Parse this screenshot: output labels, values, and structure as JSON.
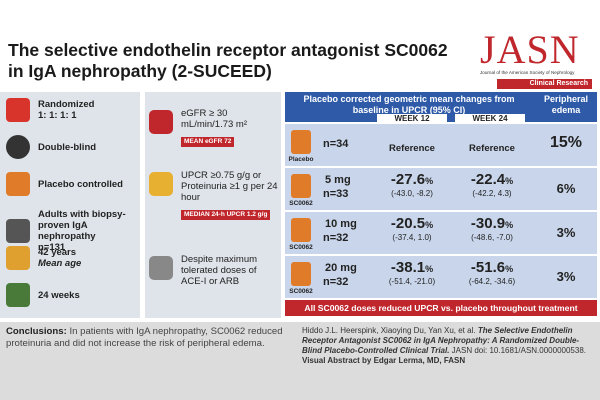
{
  "header": {
    "title": "The selective endothelin receptor antagonist SC0062 in IgA nephropathy (2-SUCEED)",
    "journal": "JASN",
    "journal_full": "Journal of the American Society of Nephrology",
    "section": "Clinical Research"
  },
  "design": [
    {
      "main": "Randomized",
      "sub": "1: 1: 1: 1"
    },
    {
      "main": "Double-blind"
    },
    {
      "main": "Placebo controlled"
    },
    {
      "main": "Adults with biopsy-proven IgA nephropathy",
      "sub": "n=131"
    },
    {
      "main": "42 years",
      "sub": "Mean age"
    },
    {
      "main": "24 weeks"
    }
  ],
  "criteria": [
    {
      "text": "eGFR ≥ 30 mL/min/1.73 m²",
      "badge": "MEAN eGFR 72"
    },
    {
      "text": "UPCR ≥0.75 g/g or Proteinuria ≥1 g per 24 hour",
      "badge": "MEDIAN 24-h UPCR 1.2 g/g"
    },
    {
      "text": "Despite maximum tolerated doses of ACE-I or ARB"
    }
  ],
  "results": {
    "header": "Placebo corrected geometric mean changes from baseline in UPCR (95% CI)",
    "edema_header": "Peripheral edema",
    "weeks": [
      "WEEK 12",
      "WEEK 24"
    ],
    "rows": [
      {
        "drug": "Placebo",
        "n": "n=34",
        "cells": [
          {
            "ref": "Reference"
          },
          {
            "ref": "Reference"
          }
        ],
        "edema": "15%"
      },
      {
        "drug": "SC0062",
        "dose": "5 mg",
        "n": "n=33",
        "cells": [
          {
            "value": "-27.6",
            "unit": "%",
            "ci": "(-43.0, -8.2)"
          },
          {
            "value": "-22.4",
            "unit": "%",
            "ci": "(-42.2, 4.3)"
          }
        ],
        "edema": "6%"
      },
      {
        "drug": "SC0062",
        "dose": "10 mg",
        "n": "n=32",
        "cells": [
          {
            "value": "-20.5",
            "unit": "%",
            "ci": "(-37.4, 1.0)"
          },
          {
            "value": "-30.9",
            "unit": "%",
            "ci": "(-48.6, -7.0)"
          }
        ],
        "edema": "3%"
      },
      {
        "drug": "SC0062",
        "dose": "20 mg",
        "n": "n=32",
        "cells": [
          {
            "value": "-38.1",
            "unit": "%",
            "ci": "(-51.4, -21.0)"
          },
          {
            "value": "-51.6",
            "unit": "%",
            "ci": "(-64.2, -34.6)"
          }
        ],
        "edema": "3%"
      }
    ],
    "footer": "All SC0062 doses reduced UPCR vs. placebo throughout treatment"
  },
  "conclusion": {
    "label": "Conclusions:",
    "text": "In patients with IgA nephropathy, SC0062 reduced proteinuria and did not increase the risk of peripheral edema."
  },
  "citation": {
    "authors": "Hiddo J.L. Heerspink, Xiaoying Du, Yan Xu, et al.",
    "title": "The Selective Endothelin Receptor Antagonist SC0062 in IgA Nephropathy: A Randomized Double-Blind Placebo-Controlled Clinical Trial.",
    "source": "JASN doi: 10.1681/ASN.0000000538.",
    "credit": "Visual Abstract by Edgar Lerma, MD, FASN"
  }
}
